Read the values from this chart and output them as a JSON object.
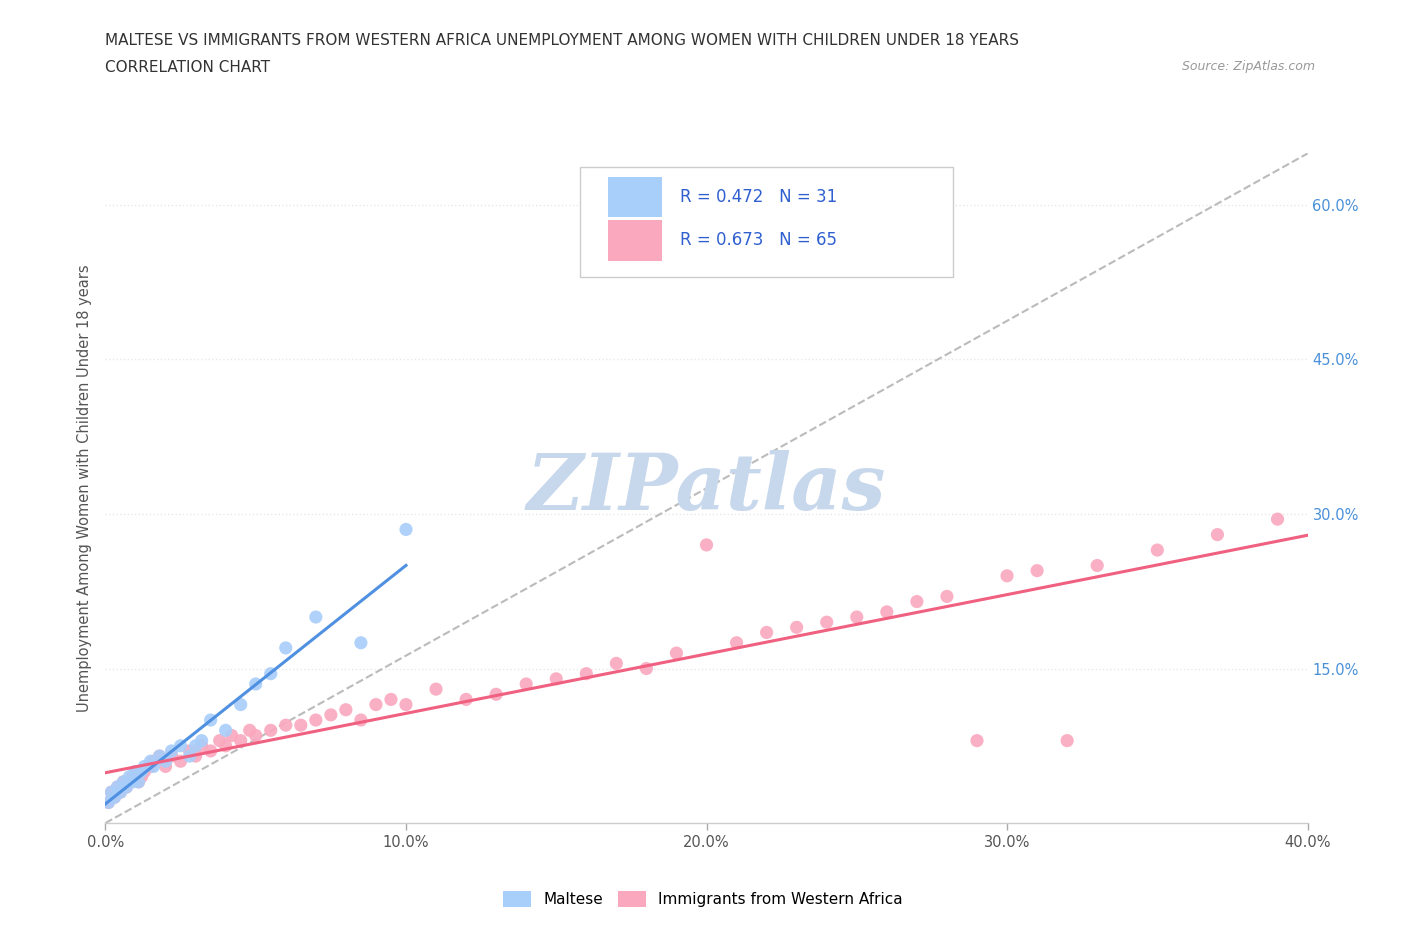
{
  "title": "MALTESE VS IMMIGRANTS FROM WESTERN AFRICA UNEMPLOYMENT AMONG WOMEN WITH CHILDREN UNDER 18 YEARS",
  "subtitle": "CORRELATION CHART",
  "source": "Source: ZipAtlas.com",
  "ylabel": "Unemployment Among Women with Children Under 18 years",
  "xlim": [
    0.0,
    0.4
  ],
  "ylim": [
    0.0,
    0.65
  ],
  "xticks": [
    0.0,
    0.1,
    0.2,
    0.3,
    0.4
  ],
  "yticks": [
    0.15,
    0.3,
    0.45,
    0.6
  ],
  "ytick_labels": [
    "15.0%",
    "30.0%",
    "45.0%",
    "60.0%"
  ],
  "xtick_labels": [
    "0.0%",
    "10.0%",
    "20.0%",
    "30.0%",
    "40.0%"
  ],
  "blue_color": "#A8CEFA",
  "pink_color": "#FAA8BE",
  "blue_line_color": "#5090E0",
  "pink_line_color": "#F06080",
  "dashed_line_color": "#BBBBBB",
  "watermark_color": "#C8D8EC",
  "maltese_R": 0.472,
  "maltese_N": 31,
  "immigrants_R": 0.673,
  "immigrants_N": 65,
  "maltese_x": [
    0.001,
    0.002,
    0.003,
    0.004,
    0.005,
    0.006,
    0.007,
    0.008,
    0.009,
    0.01,
    0.011,
    0.012,
    0.013,
    0.015,
    0.016,
    0.018,
    0.02,
    0.022,
    0.025,
    0.028,
    0.03,
    0.032,
    0.035,
    0.04,
    0.045,
    0.05,
    0.055,
    0.06,
    0.07,
    0.085,
    0.1
  ],
  "maltese_y": [
    0.02,
    0.03,
    0.025,
    0.035,
    0.03,
    0.04,
    0.035,
    0.045,
    0.04,
    0.05,
    0.04,
    0.05,
    0.055,
    0.06,
    0.055,
    0.065,
    0.06,
    0.07,
    0.075,
    0.065,
    0.075,
    0.08,
    0.1,
    0.09,
    0.115,
    0.135,
    0.145,
    0.17,
    0.2,
    0.175,
    0.285
  ],
  "immigrants_x": [
    0.001,
    0.002,
    0.003,
    0.004,
    0.005,
    0.006,
    0.007,
    0.008,
    0.009,
    0.01,
    0.011,
    0.012,
    0.013,
    0.015,
    0.016,
    0.018,
    0.02,
    0.022,
    0.025,
    0.028,
    0.03,
    0.032,
    0.035,
    0.038,
    0.04,
    0.042,
    0.045,
    0.048,
    0.05,
    0.055,
    0.06,
    0.065,
    0.07,
    0.075,
    0.08,
    0.085,
    0.09,
    0.095,
    0.1,
    0.11,
    0.12,
    0.13,
    0.14,
    0.15,
    0.16,
    0.17,
    0.18,
    0.19,
    0.2,
    0.21,
    0.22,
    0.23,
    0.24,
    0.25,
    0.26,
    0.27,
    0.28,
    0.29,
    0.3,
    0.31,
    0.32,
    0.33,
    0.35,
    0.37,
    0.39
  ],
  "immigrants_y": [
    0.02,
    0.03,
    0.025,
    0.035,
    0.03,
    0.04,
    0.035,
    0.04,
    0.045,
    0.05,
    0.04,
    0.045,
    0.05,
    0.055,
    0.06,
    0.065,
    0.055,
    0.065,
    0.06,
    0.07,
    0.065,
    0.075,
    0.07,
    0.08,
    0.075,
    0.085,
    0.08,
    0.09,
    0.085,
    0.09,
    0.095,
    0.095,
    0.1,
    0.105,
    0.11,
    0.1,
    0.115,
    0.12,
    0.115,
    0.13,
    0.12,
    0.125,
    0.135,
    0.14,
    0.145,
    0.155,
    0.15,
    0.165,
    0.27,
    0.175,
    0.185,
    0.19,
    0.195,
    0.2,
    0.205,
    0.215,
    0.22,
    0.08,
    0.24,
    0.245,
    0.08,
    0.25,
    0.265,
    0.28,
    0.295
  ],
  "legend_R_color": "#3060D0",
  "background_color": "#FFFFFF",
  "grid_color": "#E8E8E8"
}
